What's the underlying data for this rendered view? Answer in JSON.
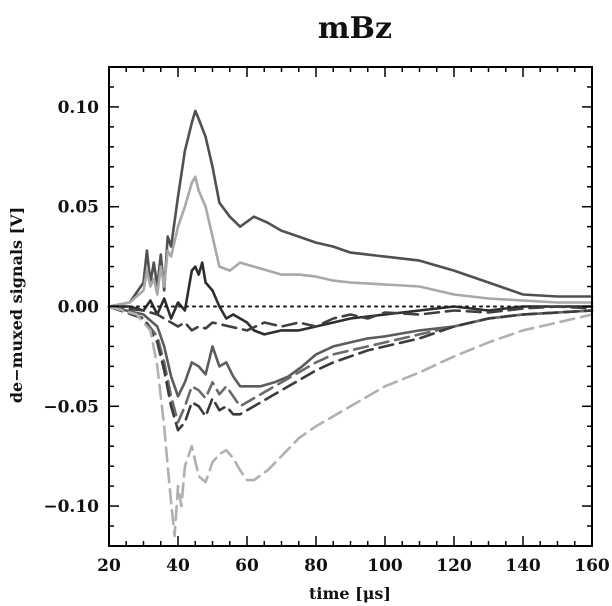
{
  "chart_data": {
    "type": "line",
    "title": "mBz",
    "xlabel": "time [μs]",
    "ylabel": "de−muxed signals [V]",
    "xlim": [
      20,
      160
    ],
    "ylim": [
      -0.12,
      0.12
    ],
    "xticks": [
      20,
      40,
      60,
      80,
      100,
      120,
      140,
      160
    ],
    "xtick_labels": [
      "20",
      "40",
      "60",
      "80",
      "100",
      "120",
      "140",
      "160"
    ],
    "yticks": [
      -0.1,
      -0.05,
      0.0,
      0.05,
      0.1
    ],
    "ytick_labels": [
      "−0.10",
      "−0.05",
      "0.00",
      "0.05",
      "0.10"
    ],
    "grid": false,
    "series": [
      {
        "style": "solid",
        "color": "#505050",
        "x": [
          20,
          26,
          30,
          31,
          32,
          33,
          34,
          35,
          36,
          37,
          38,
          40,
          42,
          44,
          45,
          46,
          48,
          50,
          52,
          55,
          58,
          62,
          66,
          70,
          75,
          80,
          85,
          90,
          95,
          100,
          110,
          120,
          130,
          140,
          150,
          160
        ],
        "y": [
          0.0,
          0.002,
          0.012,
          0.028,
          0.012,
          0.022,
          0.01,
          0.026,
          0.008,
          0.035,
          0.03,
          0.055,
          0.078,
          0.092,
          0.098,
          0.094,
          0.085,
          0.07,
          0.052,
          0.045,
          0.04,
          0.045,
          0.042,
          0.038,
          0.035,
          0.032,
          0.03,
          0.027,
          0.026,
          0.025,
          0.023,
          0.018,
          0.012,
          0.006,
          0.005,
          0.005
        ]
      },
      {
        "style": "solid",
        "color": "#a8a8a8",
        "x": [
          20,
          26,
          30,
          31,
          32,
          33,
          34,
          35,
          36,
          37,
          38,
          40,
          42,
          44,
          45,
          46,
          48,
          50,
          52,
          55,
          58,
          62,
          66,
          70,
          75,
          80,
          85,
          90,
          100,
          110,
          120,
          130,
          140,
          150,
          160
        ],
        "y": [
          0.0,
          0.002,
          0.008,
          0.018,
          0.01,
          0.014,
          0.006,
          0.02,
          0.01,
          0.028,
          0.025,
          0.04,
          0.05,
          0.062,
          0.065,
          0.058,
          0.05,
          0.035,
          0.02,
          0.018,
          0.022,
          0.02,
          0.018,
          0.016,
          0.016,
          0.015,
          0.013,
          0.012,
          0.011,
          0.01,
          0.006,
          0.004,
          0.003,
          0.002,
          0.002
        ]
      },
      {
        "style": "solid",
        "color": "#2e2e2e",
        "x": [
          20,
          26,
          30,
          32,
          34,
          36,
          38,
          40,
          42,
          44,
          45,
          46,
          47,
          48,
          50,
          52,
          54,
          56,
          58,
          60,
          62,
          65,
          70,
          75,
          80,
          85,
          90,
          95,
          100,
          110,
          120,
          130,
          140,
          150,
          160
        ],
        "y": [
          0.0,
          0.0,
          -0.002,
          0.003,
          -0.004,
          0.004,
          -0.006,
          0.002,
          -0.002,
          0.018,
          0.02,
          0.016,
          0.022,
          0.012,
          0.008,
          0.0,
          -0.006,
          -0.004,
          -0.006,
          -0.008,
          -0.012,
          -0.014,
          -0.012,
          -0.012,
          -0.01,
          -0.008,
          -0.006,
          -0.005,
          -0.004,
          -0.002,
          0.0,
          -0.002,
          0.0,
          0.0,
          0.0
        ]
      },
      {
        "style": "dotted",
        "color": "#1a1a1a",
        "x": [
          20,
          40,
          60,
          80,
          100,
          120,
          140,
          160
        ],
        "y": [
          0.0,
          0.0,
          0.0,
          0.0,
          0.0,
          0.0,
          0.0,
          0.0
        ]
      },
      {
        "style": "dashed",
        "color": "#404040",
        "x": [
          20,
          30,
          34,
          36,
          38,
          40,
          42,
          44,
          46,
          48,
          50,
          55,
          60,
          65,
          70,
          75,
          80,
          85,
          90,
          95,
          100,
          110,
          120,
          130,
          140,
          150,
          160
        ],
        "y": [
          0.0,
          -0.002,
          -0.004,
          -0.006,
          -0.008,
          -0.01,
          -0.008,
          -0.012,
          -0.01,
          -0.011,
          -0.008,
          -0.01,
          -0.012,
          -0.008,
          -0.01,
          -0.008,
          -0.01,
          -0.006,
          -0.004,
          -0.006,
          -0.003,
          -0.004,
          -0.002,
          -0.003,
          -0.001,
          0.0,
          -0.001
        ]
      },
      {
        "style": "solid",
        "color": "#5c5c5c",
        "x": [
          20,
          30,
          34,
          36,
          38,
          40,
          42,
          44,
          46,
          48,
          50,
          52,
          54,
          56,
          58,
          60,
          64,
          68,
          72,
          76,
          80,
          85,
          90,
          95,
          100,
          110,
          120,
          130,
          140,
          150,
          160
        ],
        "y": [
          0.0,
          -0.004,
          -0.01,
          -0.02,
          -0.035,
          -0.045,
          -0.038,
          -0.028,
          -0.03,
          -0.034,
          -0.02,
          -0.03,
          -0.028,
          -0.035,
          -0.04,
          -0.04,
          -0.04,
          -0.038,
          -0.035,
          -0.03,
          -0.024,
          -0.02,
          -0.018,
          -0.016,
          -0.015,
          -0.012,
          -0.01,
          -0.006,
          -0.004,
          -0.003,
          -0.002
        ]
      },
      {
        "style": "dashed",
        "color": "#6a6a6a",
        "x": [
          20,
          30,
          34,
          36,
          38,
          40,
          42,
          44,
          46,
          48,
          50,
          52,
          54,
          56,
          58,
          60,
          64,
          68,
          72,
          76,
          80,
          85,
          90,
          95,
          100,
          110,
          120,
          130,
          140,
          150,
          160
        ],
        "y": [
          0.0,
          -0.006,
          -0.015,
          -0.028,
          -0.045,
          -0.058,
          -0.05,
          -0.04,
          -0.042,
          -0.046,
          -0.038,
          -0.044,
          -0.04,
          -0.045,
          -0.05,
          -0.048,
          -0.044,
          -0.04,
          -0.036,
          -0.032,
          -0.028,
          -0.024,
          -0.022,
          -0.02,
          -0.018,
          -0.014,
          -0.01,
          -0.006,
          -0.004,
          -0.003,
          -0.002
        ]
      },
      {
        "style": "dashed",
        "color": "#3c3c3c",
        "x": [
          20,
          30,
          34,
          36,
          38,
          40,
          42,
          44,
          46,
          48,
          50,
          52,
          54,
          56,
          58,
          60,
          64,
          68,
          72,
          76,
          80,
          85,
          90,
          95,
          100,
          110,
          120,
          130,
          140,
          150,
          160
        ],
        "y": [
          0.0,
          -0.006,
          -0.018,
          -0.032,
          -0.05,
          -0.062,
          -0.058,
          -0.048,
          -0.05,
          -0.055,
          -0.046,
          -0.052,
          -0.05,
          -0.054,
          -0.054,
          -0.052,
          -0.048,
          -0.044,
          -0.04,
          -0.036,
          -0.032,
          -0.028,
          -0.025,
          -0.022,
          -0.02,
          -0.016,
          -0.01,
          -0.006,
          -0.004,
          -0.003,
          -0.002
        ]
      },
      {
        "style": "dashed",
        "color": "#b0b0b0",
        "x": [
          20,
          28,
          32,
          34,
          36,
          37,
          38,
          39,
          40,
          41,
          42,
          44,
          46,
          48,
          50,
          52,
          54,
          56,
          58,
          60,
          62,
          66,
          70,
          75,
          80,
          85,
          90,
          95,
          100,
          110,
          120,
          130,
          140,
          150,
          160
        ],
        "y": [
          0.0,
          -0.004,
          -0.012,
          -0.03,
          -0.06,
          -0.08,
          -0.098,
          -0.115,
          -0.09,
          -0.1,
          -0.08,
          -0.07,
          -0.085,
          -0.088,
          -0.078,
          -0.074,
          -0.072,
          -0.076,
          -0.082,
          -0.087,
          -0.087,
          -0.082,
          -0.075,
          -0.066,
          -0.06,
          -0.055,
          -0.05,
          -0.045,
          -0.04,
          -0.033,
          -0.025,
          -0.018,
          -0.012,
          -0.008,
          -0.004
        ]
      }
    ]
  }
}
